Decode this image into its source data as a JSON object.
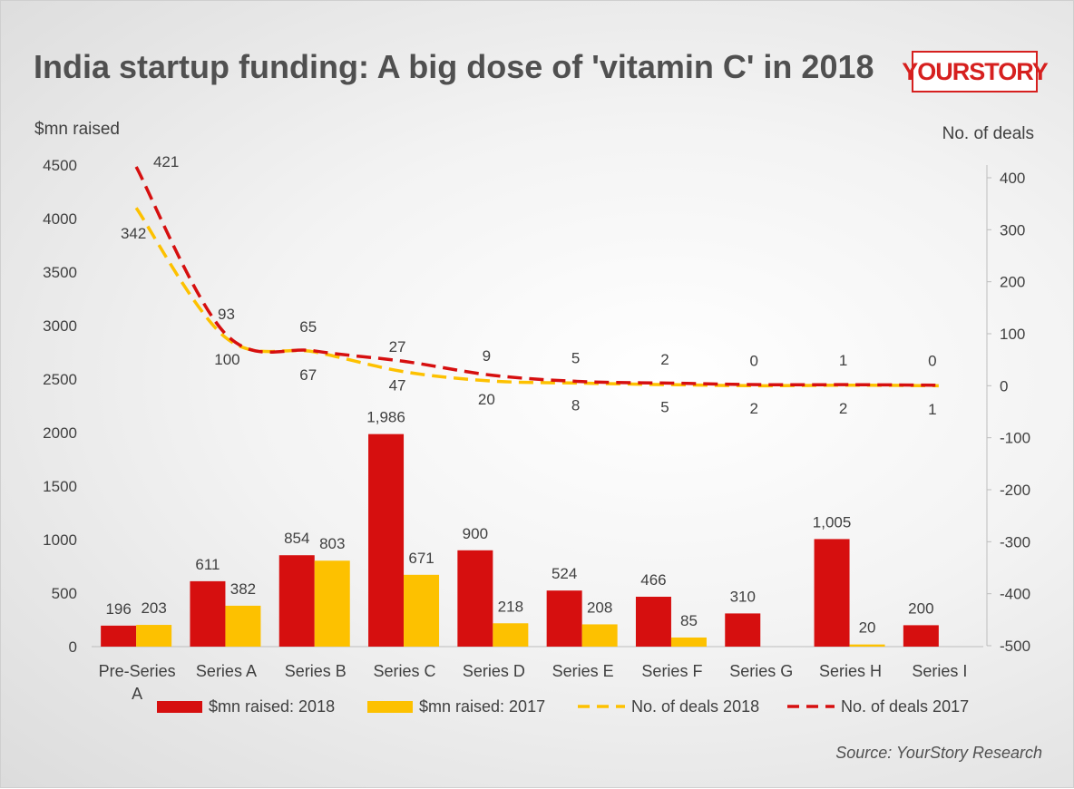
{
  "title": "India startup funding: A big dose of 'vitamin C' in 2018",
  "brand": "YOURSTORY",
  "source": "Source: YourStory Research",
  "colors": {
    "red": "#d60f0f",
    "yellow": "#fdc100",
    "axis_text": "#404040",
    "title_text": "#505050"
  },
  "chart_data": {
    "type": "bar",
    "categories": [
      "Pre-Series A",
      "Series A",
      "Series B",
      "Series C",
      "Series D",
      "Series E",
      "Series F",
      "Series G",
      "Series H",
      "Series I"
    ],
    "category_lines": [
      [
        "Pre-Series",
        "A"
      ],
      [
        "Series A"
      ],
      [
        "Series B"
      ],
      [
        "Series C"
      ],
      [
        "Series D"
      ],
      [
        "Series E"
      ],
      [
        "Series F"
      ],
      [
        "Series G"
      ],
      [
        "Series H"
      ],
      [
        "Series I"
      ]
    ],
    "bars": [
      {
        "name": "$mn raised: 2018",
        "color": "#d60f0f",
        "values": [
          196,
          611,
          854,
          1986,
          900,
          524,
          466,
          310,
          1005,
          200
        ],
        "labels": [
          "196",
          "611",
          "854",
          "1,986",
          "900",
          "524",
          "466",
          "310",
          "1,005",
          "200"
        ]
      },
      {
        "name": "$mn raised: 2017",
        "color": "#fdc100",
        "values": [
          203,
          382,
          803,
          671,
          218,
          208,
          85,
          0,
          20,
          0
        ],
        "labels": [
          "203",
          "382",
          "803",
          "671",
          "218",
          "208",
          "85",
          "",
          "20",
          ""
        ]
      }
    ],
    "lines": [
      {
        "name": "No. of deals 2018",
        "color": "#fdc100",
        "style": "dashed",
        "values": [
          342,
          93,
          65,
          27,
          9,
          5,
          2,
          0,
          1,
          0
        ]
      },
      {
        "name": "No. of deals 2017",
        "color": "#d60f0f",
        "style": "dashed",
        "values": [
          421,
          100,
          67,
          47,
          20,
          8,
          5,
          2,
          2,
          1
        ]
      }
    ],
    "ylabel_left": "$mn raised",
    "ylabel_right": "No. of deals",
    "ylim_left": [
      0,
      4500
    ],
    "yticks_left": [
      0,
      500,
      1000,
      1500,
      2000,
      2500,
      3000,
      3500,
      4000,
      4500
    ],
    "ylim_right": [
      -500,
      421
    ],
    "yticks_right": [
      -500,
      -400,
      -300,
      -200,
      -100,
      0,
      100,
      200,
      300,
      400
    ],
    "grid": false,
    "legend_position": "bottom"
  }
}
